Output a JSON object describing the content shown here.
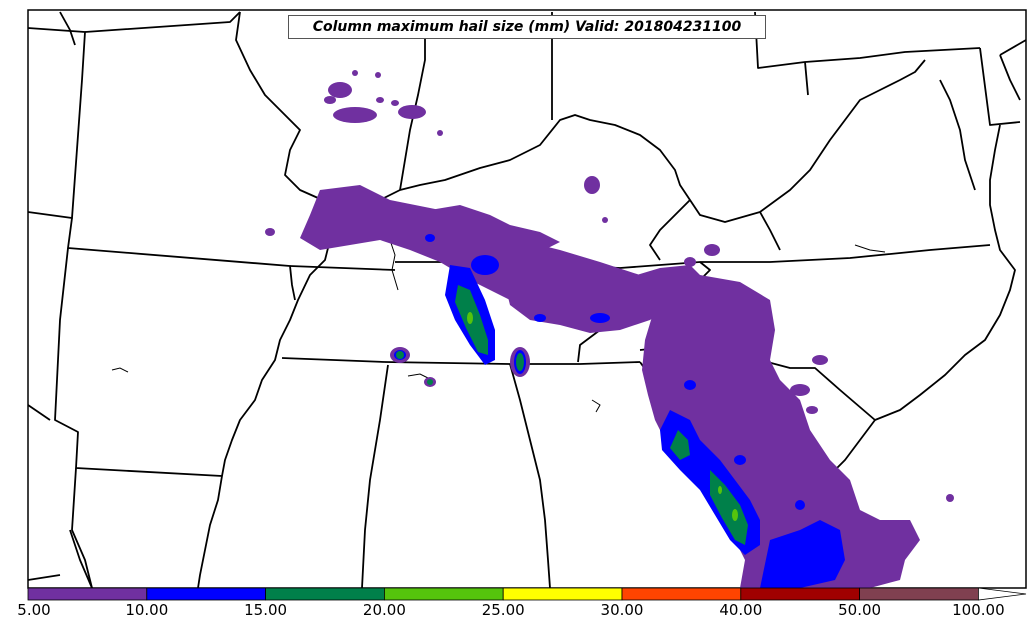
{
  "title": "Column maximum hail size (mm) Valid: 201804231100",
  "colorbar": {
    "labels": [
      "5.00",
      "10.00",
      "15.00",
      "20.00",
      "25.00",
      "30.00",
      "40.00",
      "50.00",
      "100.00"
    ],
    "colors": [
      "#7030a0",
      "#0000ff",
      "#00804a",
      "#55c40c",
      "#ffff00",
      "#ff4400",
      "#a00000",
      "#804050"
    ]
  }
}
